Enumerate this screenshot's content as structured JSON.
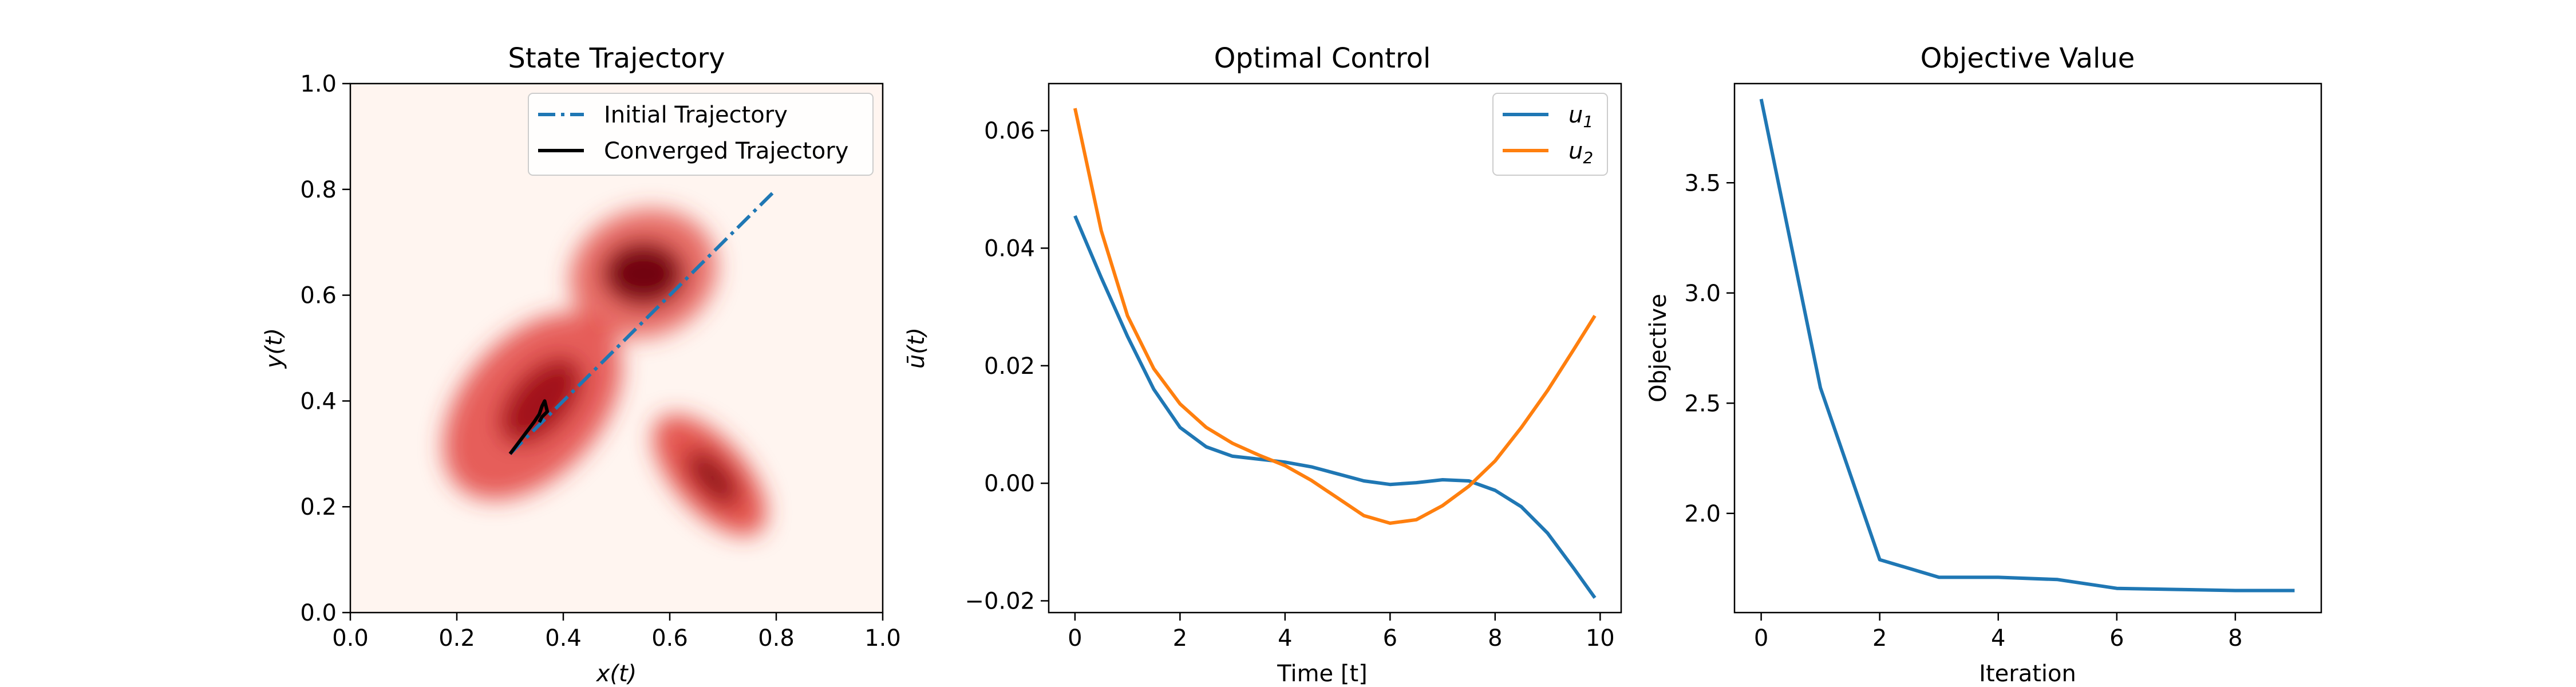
{
  "chart_data": [
    {
      "type": "heatmap",
      "title": "State Trajectory",
      "xlabel": "x(t)",
      "ylabel": "y(t)",
      "xlim": [
        0.0,
        1.0
      ],
      "ylim": [
        0.0,
        1.0
      ],
      "xticks": [
        "0.0",
        "0.2",
        "0.4",
        "0.6",
        "0.8",
        "1.0"
      ],
      "yticks": [
        "0.0",
        "0.2",
        "0.4",
        "0.6",
        "0.8",
        "1.0"
      ],
      "grid": false,
      "legend_position": "top-right",
      "colormap": "Reds",
      "legend": [
        "Initial Trajectory",
        "Converged Trajectory"
      ],
      "series": [
        {
          "name": "Initial Trajectory",
          "style": "dashdot",
          "color": "#1f77b4",
          "x": [
            0.3,
            0.8
          ],
          "y": [
            0.3,
            0.8
          ]
        },
        {
          "name": "Converged Trajectory",
          "style": "solid",
          "color": "#000000",
          "x": [
            0.3,
            0.315,
            0.33,
            0.345,
            0.355,
            0.36,
            0.365,
            0.37,
            0.365,
            0.36,
            0.355
          ],
          "y": [
            0.3,
            0.32,
            0.34,
            0.36,
            0.375,
            0.39,
            0.4,
            0.38,
            0.375,
            0.37,
            0.36
          ]
        }
      ]
    },
    {
      "type": "line",
      "title": "Optimal Control",
      "xlabel": "Time [t]",
      "ylabel": "ū(t)",
      "xlim": [
        -0.5,
        10.4
      ],
      "ylim": [
        -0.022,
        0.068
      ],
      "xticks": [
        "0",
        "2",
        "4",
        "6",
        "8",
        "10"
      ],
      "yticks": [
        "−0.02",
        "0.00",
        "0.02",
        "0.04",
        "0.06"
      ],
      "grid": false,
      "legend_position": "top-right",
      "legend": [
        "u1",
        "u2"
      ],
      "series": [
        {
          "name": "u1",
          "color": "#1f77b4",
          "x": [
            0,
            0.5,
            1,
            1.5,
            2,
            2.5,
            3,
            3.5,
            4,
            4.5,
            5,
            5.5,
            6,
            6.5,
            7,
            7.5,
            8,
            8.5,
            9,
            9.5,
            9.9
          ],
          "y": [
            0.0455,
            0.035,
            0.025,
            0.016,
            0.0095,
            0.0062,
            0.0046,
            0.0041,
            0.0036,
            0.0028,
            0.0016,
            0.0004,
            -0.0002,
            0.0001,
            0.0006,
            0.0004,
            -0.0012,
            -0.004,
            -0.0085,
            -0.0145,
            -0.0195
          ]
        },
        {
          "name": "u2",
          "color": "#ff7f0e",
          "x": [
            0,
            0.5,
            1,
            1.5,
            2,
            2.5,
            3,
            3.5,
            4,
            4.5,
            5,
            5.5,
            6,
            6.5,
            7,
            7.5,
            8,
            8.5,
            9,
            9.5,
            9.9
          ],
          "y": [
            0.0638,
            0.043,
            0.0285,
            0.0195,
            0.0135,
            0.0095,
            0.0068,
            0.0048,
            0.003,
            0.0005,
            -0.0025,
            -0.0055,
            -0.0068,
            -0.0062,
            -0.0038,
            -0.0005,
            0.0038,
            0.0095,
            0.0158,
            0.0228,
            0.0285
          ]
        }
      ]
    },
    {
      "type": "line",
      "title": "Objective Value",
      "xlabel": "Iteration",
      "ylabel": "Objective",
      "xlim": [
        -0.45,
        9.45
      ],
      "ylim": [
        1.55,
        3.95
      ],
      "xticks": [
        "0",
        "2",
        "4",
        "6",
        "8"
      ],
      "yticks": [
        "2.0",
        "2.5",
        "3.0",
        "3.5"
      ],
      "grid": false,
      "series": [
        {
          "color": "#1f77b4",
          "x": [
            0,
            1,
            2,
            3,
            4,
            5,
            6,
            7,
            8,
            9
          ],
          "y": [
            3.88,
            2.57,
            1.79,
            1.71,
            1.71,
            1.7,
            1.66,
            1.655,
            1.65,
            1.65
          ]
        }
      ]
    }
  ]
}
